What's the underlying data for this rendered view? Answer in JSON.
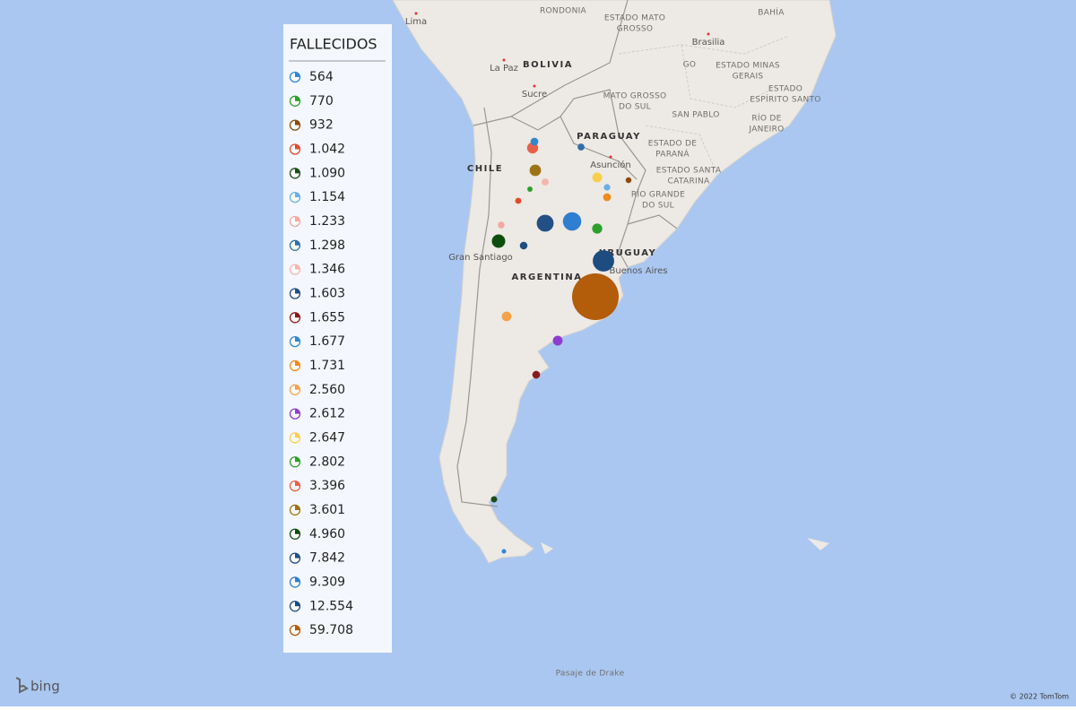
{
  "map": {
    "labels": [
      {
        "lines": [
          "Lima"
        ]
      },
      {
        "lines": [
          "RONDONIA"
        ]
      },
      {
        "lines": [
          "ESTADO MATO",
          "GROSSO"
        ]
      },
      {
        "lines": [
          "BAHÍA"
        ]
      },
      {
        "lines": [
          "Brasilia"
        ]
      },
      {
        "lines": [
          "GO"
        ]
      },
      {
        "lines": [
          "ESTADO MINAS",
          "GERAIS"
        ]
      },
      {
        "lines": [
          "ESTADO",
          "ESPÍRITO SANTO"
        ]
      },
      {
        "lines": [
          "La Paz"
        ]
      },
      {
        "lines": [
          "BOLIVIA"
        ]
      },
      {
        "lines": [
          "Sucre"
        ]
      },
      {
        "lines": [
          "MATO GROSSO",
          "DO SUL"
        ]
      },
      {
        "lines": [
          "SAN PABLO"
        ]
      },
      {
        "lines": [
          "RÍO DE",
          "JANEIRO"
        ]
      },
      {
        "lines": [
          "PARAGUAY"
        ]
      },
      {
        "lines": [
          "ESTADO DE",
          "PARANÁ"
        ]
      },
      {
        "lines": [
          "Asunción"
        ]
      },
      {
        "lines": [
          "ESTADO SANTA",
          "CATARINA"
        ]
      },
      {
        "lines": [
          "RÍO GRANDE",
          "DO SUL"
        ]
      },
      {
        "lines": [
          "CHILE"
        ]
      },
      {
        "lines": [
          "URUGUAY"
        ]
      },
      {
        "lines": [
          "Gran Santiago"
        ]
      },
      {
        "lines": [
          "Buenos Aires"
        ]
      },
      {
        "lines": [
          "ARGENTINA"
        ]
      },
      {
        "lines": [
          "Pasaje de Drake"
        ]
      }
    ],
    "logo": "bing",
    "attribution": "© 2022 TomTom"
  },
  "legend": {
    "title": "FALLECIDOS",
    "items": [
      {
        "label": "564",
        "value": 564,
        "color": "#2f86d6"
      },
      {
        "label": "770",
        "value": 770,
        "color": "#2ca02c"
      },
      {
        "label": "932",
        "value": 932,
        "color": "#8b4a0c"
      },
      {
        "label": "1.042",
        "value": 1042,
        "color": "#e04a2f"
      },
      {
        "label": "1.090",
        "value": 1090,
        "color": "#1a4d1a"
      },
      {
        "label": "1.154",
        "value": 1154,
        "color": "#6aaee6"
      },
      {
        "label": "1.233",
        "value": 1233,
        "color": "#f4a8a0"
      },
      {
        "label": "1.298",
        "value": 1298,
        "color": "#2f6ea8"
      },
      {
        "label": "1.346",
        "value": 1346,
        "color": "#f5b5ad"
      },
      {
        "label": "1.603",
        "value": 1603,
        "color": "#1e4d80"
      },
      {
        "label": "1.655",
        "value": 1655,
        "color": "#8b1a1a"
      },
      {
        "label": "1.677",
        "value": 1677,
        "color": "#3388cc"
      },
      {
        "label": "1.731",
        "value": 1731,
        "color": "#f08a1c"
      },
      {
        "label": "2.560",
        "value": 2560,
        "color": "#f4a24a"
      },
      {
        "label": "2.612",
        "value": 2612,
        "color": "#8e3ccf"
      },
      {
        "label": "2.647",
        "value": 2647,
        "color": "#f7cf4c"
      },
      {
        "label": "2.802",
        "value": 2802,
        "color": "#2ca02c"
      },
      {
        "label": "3.396",
        "value": 3396,
        "color": "#e8604a"
      },
      {
        "label": "3.601",
        "value": 3601,
        "color": "#9c7416"
      },
      {
        "label": "4.960",
        "value": 4960,
        "color": "#0d4d0d"
      },
      {
        "label": "7.842",
        "value": 7842,
        "color": "#224f84"
      },
      {
        "label": "9.309",
        "value": 9309,
        "color": "#2e7fd1"
      },
      {
        "label": "12.554",
        "value": 12554,
        "color": "#1d4c80"
      },
      {
        "label": "59.708",
        "value": 59708,
        "color": "#b35c0a"
      }
    ]
  }
}
